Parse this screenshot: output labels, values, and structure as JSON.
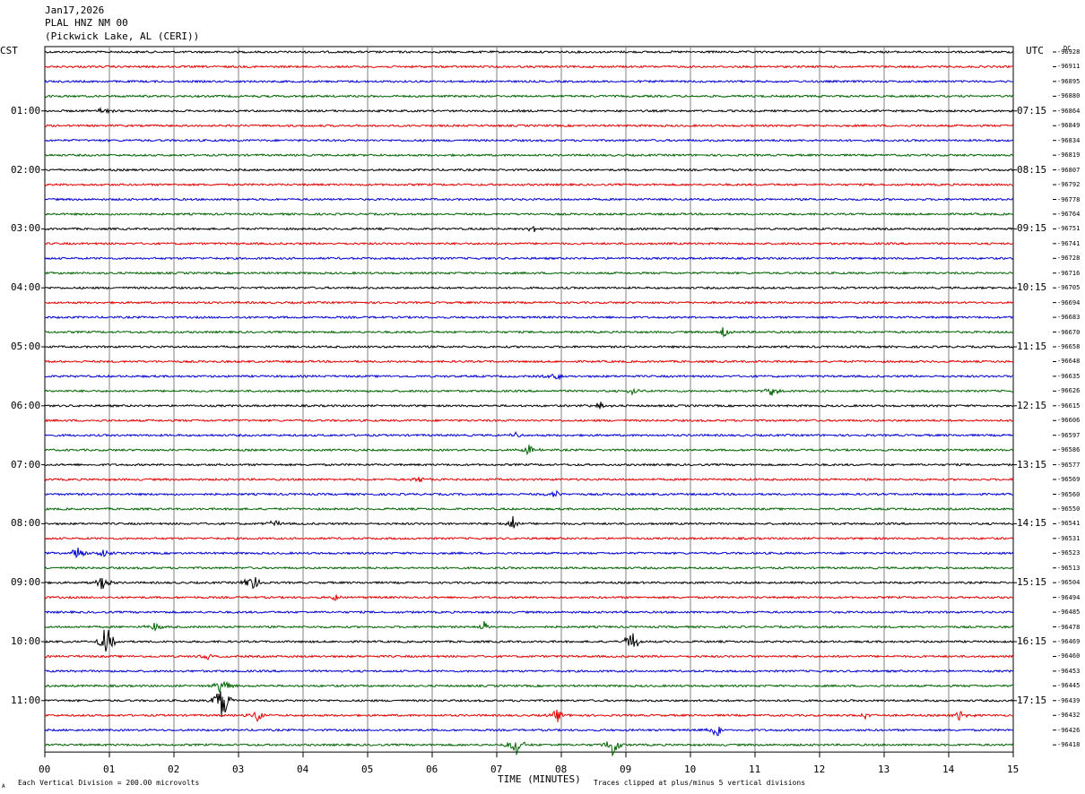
{
  "header": {
    "date": "Jan17,2026",
    "station": "PLAL HNZ NM 00",
    "location": "(Pickwick Lake, AL (CERI))"
  },
  "left_tz": "CST",
  "right_tz": "UTC",
  "dc_label": "DC",
  "footer": {
    "scale_note": "Each Vertical Division =  200.00 microvolts",
    "clip_note": "Traces clipped at plus/minus 5 vertical divisions",
    "corner_mark": "A"
  },
  "chart_data": {
    "type": "seismogram",
    "title": "",
    "xlabel": "TIME (MINUTES)",
    "x_range": [
      0,
      15
    ],
    "x_ticks": [
      "00",
      "01",
      "02",
      "03",
      "04",
      "05",
      "06",
      "07",
      "08",
      "09",
      "10",
      "11",
      "12",
      "13",
      "14",
      "15"
    ],
    "left_hour_labels": [
      "01:00",
      "02:00",
      "03:00",
      "04:00",
      "05:00",
      "06:00",
      "07:00",
      "08:00",
      "09:00",
      "10:00",
      "11:00"
    ],
    "right_hour_labels": [
      "07:15",
      "08:15",
      "09:15",
      "10:15",
      "11:15",
      "12:15",
      "13:15",
      "14:15",
      "15:15",
      "16:15",
      "17:15"
    ],
    "trace_colors": [
      "#000000",
      "#e00000",
      "#0000d0",
      "#006400"
    ],
    "dc_offsets": [
      "-96928",
      "-96911",
      "-96895",
      "-96880",
      "-96864",
      "-96849",
      "-96834",
      "-96819",
      "-96807",
      "-96792",
      "-96778",
      "-96764",
      "-96751",
      "-96741",
      "-96728",
      "-96716",
      "-96705",
      "-96694",
      "-96683",
      "-96670",
      "-96658",
      "-96648",
      "-96635",
      "-96626",
      "-96615",
      "-96606",
      "-96597",
      "-96586",
      "-96577",
      "-96569",
      "-96560",
      "-96550",
      "-96541",
      "-96531",
      "-96523",
      "-96513",
      "-96504",
      "-96494",
      "-96485",
      "-96478",
      "-96469",
      "-96460",
      "-96453",
      "-96445",
      "-96439",
      "-96432",
      "-96426",
      "-96418"
    ],
    "events": [
      {
        "trace": 4,
        "minute": 0.9,
        "amp": 6
      },
      {
        "trace": 12,
        "minute": 7.55,
        "amp": 5
      },
      {
        "trace": 19,
        "minute": 10.5,
        "amp": 8
      },
      {
        "trace": 22,
        "minute": 7.9,
        "amp": 7
      },
      {
        "trace": 23,
        "minute": 9.1,
        "amp": 5
      },
      {
        "trace": 23,
        "minute": 11.25,
        "amp": 6
      },
      {
        "trace": 24,
        "minute": 8.6,
        "amp": 5
      },
      {
        "trace": 26,
        "minute": 7.3,
        "amp": 4
      },
      {
        "trace": 27,
        "minute": 7.5,
        "amp": 6
      },
      {
        "trace": 29,
        "minute": 5.8,
        "amp": 6
      },
      {
        "trace": 30,
        "minute": 7.9,
        "amp": 5
      },
      {
        "trace": 32,
        "minute": 3.55,
        "amp": 5
      },
      {
        "trace": 32,
        "minute": 7.25,
        "amp": 8
      },
      {
        "trace": 34,
        "minute": 0.5,
        "amp": 12
      },
      {
        "trace": 34,
        "minute": 0.9,
        "amp": 6
      },
      {
        "trace": 36,
        "minute": 0.9,
        "amp": 10
      },
      {
        "trace": 36,
        "minute": 3.2,
        "amp": 14
      },
      {
        "trace": 37,
        "minute": 4.5,
        "amp": 4
      },
      {
        "trace": 39,
        "minute": 1.7,
        "amp": 6
      },
      {
        "trace": 39,
        "minute": 6.8,
        "amp": 6
      },
      {
        "trace": 40,
        "minute": 0.95,
        "amp": 20
      },
      {
        "trace": 40,
        "minute": 9.1,
        "amp": 14
      },
      {
        "trace": 41,
        "minute": 2.5,
        "amp": 4
      },
      {
        "trace": 43,
        "minute": 2.75,
        "amp": 14
      },
      {
        "trace": 44,
        "minute": 2.75,
        "amp": 26
      },
      {
        "trace": 45,
        "minute": 3.3,
        "amp": 8
      },
      {
        "trace": 45,
        "minute": 7.95,
        "amp": 8
      },
      {
        "trace": 45,
        "minute": 12.7,
        "amp": 5
      },
      {
        "trace": 45,
        "minute": 14.2,
        "amp": 10
      },
      {
        "trace": 46,
        "minute": 10.4,
        "amp": 10
      },
      {
        "trace": 47,
        "minute": 7.3,
        "amp": 14
      },
      {
        "trace": 47,
        "minute": 8.8,
        "amp": 16
      }
    ]
  }
}
